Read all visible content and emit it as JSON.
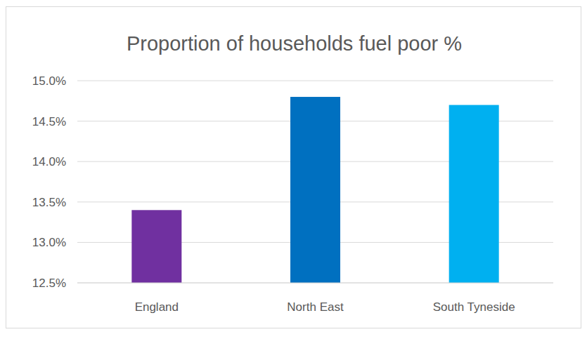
{
  "chart_data": {
    "type": "bar",
    "title": "Proportion of households fuel poor %",
    "categories": [
      "England",
      "North East",
      "South Tyneside"
    ],
    "values": [
      13.4,
      14.8,
      14.7
    ],
    "colors": [
      "#7030a0",
      "#0070c0",
      "#00b0f0"
    ],
    "ylim": [
      12.5,
      15
    ],
    "yticks": [
      {
        "value": 12.5,
        "label": "12.5%"
      },
      {
        "value": 13,
        "label": "13.0%"
      },
      {
        "value": 13.5,
        "label": "13.5%"
      },
      {
        "value": 14,
        "label": "14.0%"
      },
      {
        "value": 14.5,
        "label": "14.5%"
      },
      {
        "value": 15,
        "label": "15.0%"
      }
    ],
    "grid": true
  }
}
